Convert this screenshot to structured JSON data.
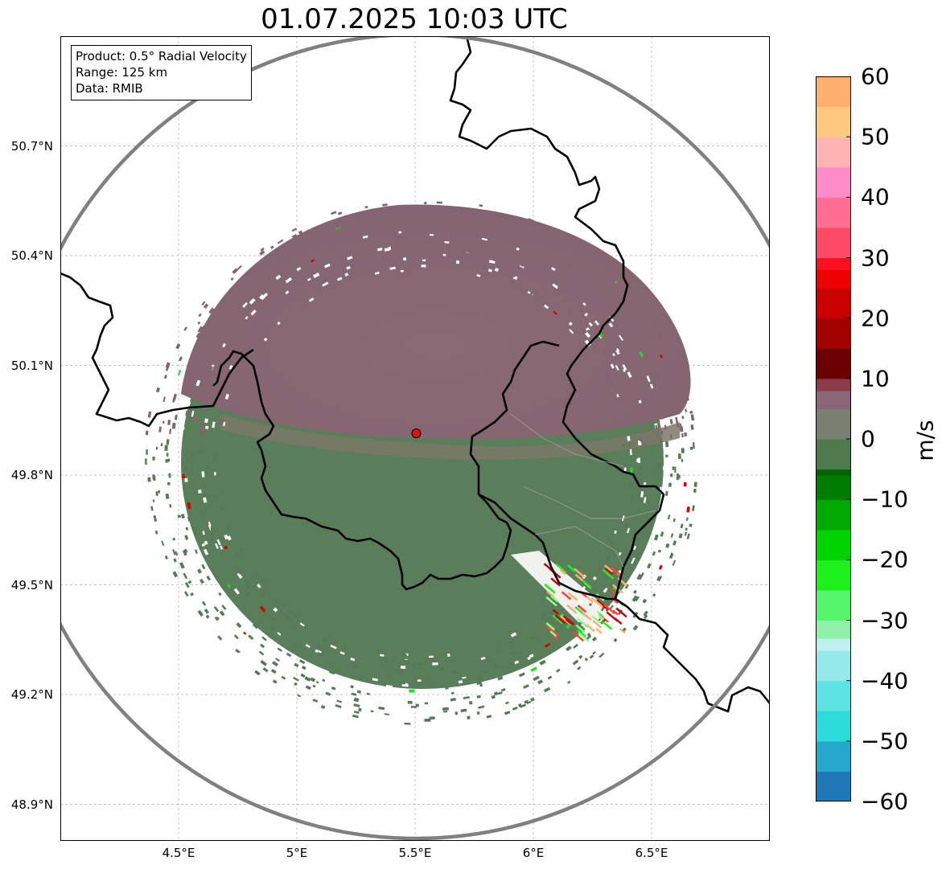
{
  "title": "01.07.2025 10:03 UTC",
  "info_box": {
    "product": "Product: 0.5° Radial Velocity",
    "range": "Range: 125 km",
    "source": "Data: RMIB"
  },
  "map": {
    "lon_range": [
      4.0,
      7.0
    ],
    "lat_range": [
      48.8,
      51.0
    ],
    "radar_site": {
      "lon": 5.505,
      "lat": 49.914,
      "color": "#e01010"
    },
    "lat_ticks": [
      {
        "value": 50.7,
        "label": "50.7°N"
      },
      {
        "value": 50.4,
        "label": "50.4°N"
      },
      {
        "value": 50.1,
        "label": "50.1°N"
      },
      {
        "value": 49.8,
        "label": "49.8°N"
      },
      {
        "value": 49.5,
        "label": "49.5°N"
      },
      {
        "value": 49.2,
        "label": "49.2°N"
      },
      {
        "value": 48.9,
        "label": "48.9°N"
      }
    ],
    "lon_ticks": [
      {
        "value": 4.5,
        "label": "4.5°E"
      },
      {
        "value": 5.0,
        "label": "5°E"
      },
      {
        "value": 5.5,
        "label": "5.5°E"
      },
      {
        "value": 6.0,
        "label": "6°E"
      },
      {
        "value": 6.5,
        "label": "6.5°E"
      }
    ],
    "grid": true,
    "range_ring_color": "#808080",
    "echo_colors": {
      "approaching": "#557a55",
      "receding": "#846470"
    }
  },
  "colorbar": {
    "unit": "m/s",
    "min": -60,
    "max": 60,
    "ticks": [
      {
        "value": 60,
        "label": "60"
      },
      {
        "value": 50,
        "label": "50"
      },
      {
        "value": 40,
        "label": "40"
      },
      {
        "value": 30,
        "label": "30"
      },
      {
        "value": 20,
        "label": "20"
      },
      {
        "value": 10,
        "label": "10"
      },
      {
        "value": 0,
        "label": "0"
      },
      {
        "value": -10,
        "label": "−10"
      },
      {
        "value": -20,
        "label": "−20"
      },
      {
        "value": -30,
        "label": "−30"
      },
      {
        "value": -40,
        "label": "−40"
      },
      {
        "value": -50,
        "label": "−50"
      },
      {
        "value": -60,
        "label": "−60"
      }
    ],
    "stops": [
      {
        "value": -60,
        "color": "#1f77b4"
      },
      {
        "value": -55,
        "color": "#25a8cc"
      },
      {
        "value": -50,
        "color": "#2ddbdb"
      },
      {
        "value": -45,
        "color": "#5ee2e2"
      },
      {
        "value": -40,
        "color": "#96e9ea"
      },
      {
        "value": -35,
        "color": "#bff0f0"
      },
      {
        "value": -33,
        "color": "#8ff0a8"
      },
      {
        "value": -30,
        "color": "#56f56e"
      },
      {
        "value": -25,
        "color": "#1ef01e"
      },
      {
        "value": -20,
        "color": "#00d400"
      },
      {
        "value": -15,
        "color": "#00a800"
      },
      {
        "value": -10,
        "color": "#007c00"
      },
      {
        "value": -6,
        "color": "#006400"
      },
      {
        "value": -5,
        "color": "#4e7a4e"
      },
      {
        "value": 0,
        "color": "#7a8070"
      },
      {
        "value": 5,
        "color": "#8a6478"
      },
      {
        "value": 8,
        "color": "#8c3c48"
      },
      {
        "value": 10,
        "color": "#6a0000"
      },
      {
        "value": 15,
        "color": "#a00000"
      },
      {
        "value": 20,
        "color": "#c80000"
      },
      {
        "value": 25,
        "color": "#ee0000"
      },
      {
        "value": 28,
        "color": "#ff1020"
      },
      {
        "value": 30,
        "color": "#ff4a66"
      },
      {
        "value": 35,
        "color": "#ff6e90"
      },
      {
        "value": 40,
        "color": "#ff8cc8"
      },
      {
        "value": 45,
        "color": "#ffb4b4"
      },
      {
        "value": 50,
        "color": "#ffc880"
      },
      {
        "value": 55,
        "color": "#ffb070"
      },
      {
        "value": 60,
        "color": "#ff9a55"
      }
    ]
  }
}
